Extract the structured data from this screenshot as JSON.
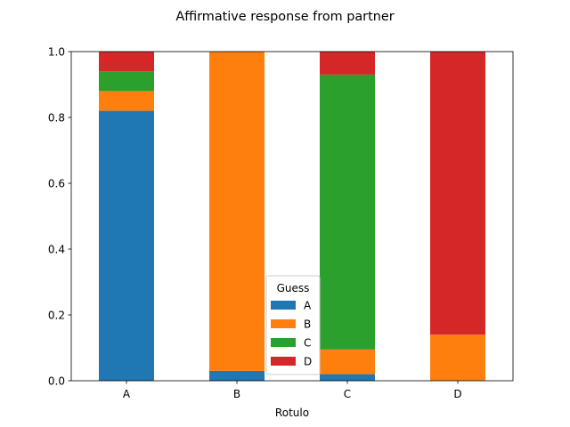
{
  "chart_data": {
    "type": "bar",
    "stacked": true,
    "title": "Affirmative response from partner",
    "xlabel": "Rotulo",
    "ylabel": "",
    "categories": [
      "A",
      "B",
      "C",
      "D"
    ],
    "ylim": [
      0,
      1.0
    ],
    "yticks": [
      0.0,
      0.2,
      0.4,
      0.6,
      0.8,
      1.0
    ],
    "ytick_labels": [
      "0.0",
      "0.2",
      "0.4",
      "0.6",
      "0.8",
      "1.0"
    ],
    "grid": false,
    "legend": {
      "title": "Guess",
      "placement": "lower center"
    },
    "series": [
      {
        "name": "A",
        "color": "#1f77b4",
        "values": [
          0.82,
          0.03,
          0.02,
          0.0
        ]
      },
      {
        "name": "B",
        "color": "#ff7f0e",
        "values": [
          0.06,
          0.97,
          0.075,
          0.14
        ]
      },
      {
        "name": "C",
        "color": "#2ca02c",
        "values": [
          0.06,
          0.0,
          0.835,
          0.0
        ]
      },
      {
        "name": "D",
        "color": "#d62728",
        "values": [
          0.06,
          0.0,
          0.07,
          0.86
        ]
      }
    ]
  }
}
